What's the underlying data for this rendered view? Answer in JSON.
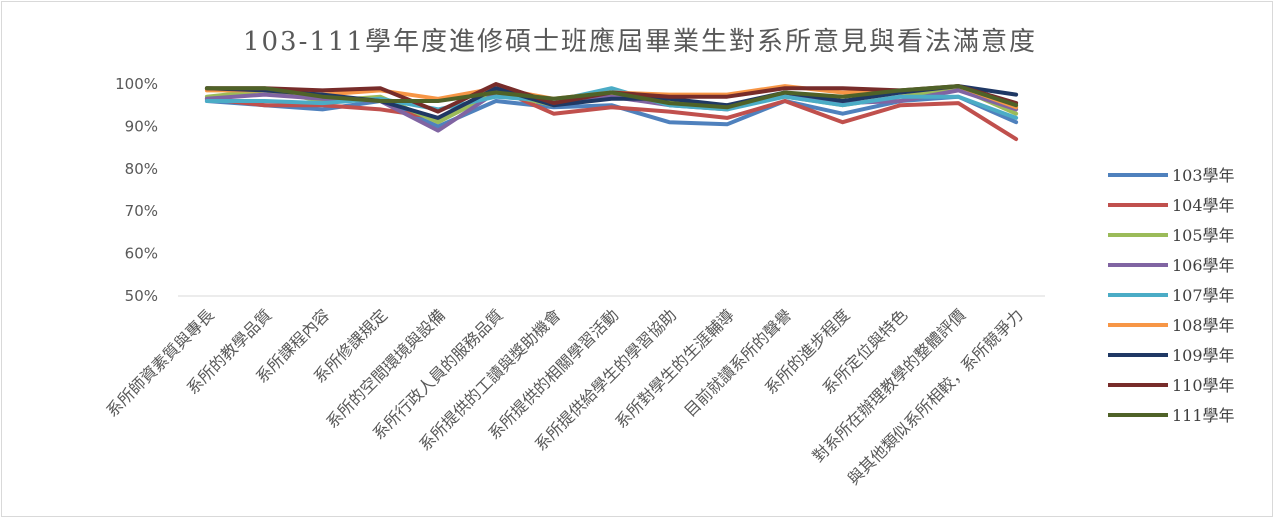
{
  "chart_data": {
    "type": "line",
    "title": "103-111學年度進修碩士班應屆畢業生對系所意見與看法滿意度",
    "xlabel": "",
    "ylabel": "",
    "ylim": [
      50,
      100
    ],
    "yticks": [
      "50%",
      "60%",
      "70%",
      "80%",
      "90%",
      "100%"
    ],
    "grid": false,
    "legend": "right",
    "categories": [
      "系所師資素質與專長",
      "系所的教學品質",
      "系所課程內容",
      "系所修課規定",
      "系所的空間環境與設備",
      "系所行政人員的服務品質",
      "系所提供的工讀與獎助機會",
      "系所提供的相關學習活動",
      "系所提供給學生的學習協助",
      "系所對學生的生涯輔導",
      "目前就讀系所的聲譽",
      "系所的進步程度",
      "系所定位與特色",
      "對系所在辦理教學的整體評價",
      "與其他類似系所相較，系所競爭力"
    ],
    "series": [
      {
        "name": "103學年",
        "color": "#4f81bd",
        "values": [
          96.0,
          95.0,
          94.0,
          96.0,
          90.0,
          96.0,
          94.5,
          95.0,
          91.0,
          90.5,
          96.0,
          93.0,
          96.0,
          97.0,
          91.0
        ]
      },
      {
        "name": "104學年",
        "color": "#c0504d",
        "values": [
          96.5,
          95.0,
          95.0,
          94.0,
          92.0,
          99.0,
          93.0,
          94.5,
          93.5,
          92.0,
          96.0,
          91.0,
          95.0,
          95.5,
          87.0
        ]
      },
      {
        "name": "105學年",
        "color": "#9bbb59",
        "values": [
          97.0,
          98.5,
          96.0,
          97.0,
          91.0,
          98.0,
          95.0,
          97.0,
          96.0,
          95.0,
          97.0,
          95.0,
          97.0,
          99.0,
          93.0
        ]
      },
      {
        "name": "106學年",
        "color": "#8064a2",
        "values": [
          96.5,
          97.5,
          96.5,
          96.0,
          89.0,
          98.0,
          96.0,
          97.0,
          95.0,
          94.0,
          98.0,
          95.5,
          96.0,
          98.5,
          94.0
        ]
      },
      {
        "name": "107學年",
        "color": "#4bacc6",
        "values": [
          96.0,
          96.0,
          95.5,
          96.5,
          94.0,
          97.0,
          96.0,
          99.0,
          95.0,
          94.0,
          97.0,
          95.0,
          97.0,
          97.0,
          92.0
        ]
      },
      {
        "name": "108學年",
        "color": "#f79646",
        "values": [
          98.5,
          98.5,
          97.5,
          98.5,
          96.5,
          99.0,
          96.5,
          98.0,
          97.5,
          97.5,
          99.5,
          98.0,
          98.0,
          99.5,
          94.5
        ]
      },
      {
        "name": "109學年",
        "color": "#1f3864",
        "values": [
          99.0,
          98.5,
          97.5,
          96.0,
          92.0,
          99.0,
          95.0,
          96.5,
          96.5,
          95.0,
          98.0,
          96.0,
          98.0,
          99.5,
          97.5
        ]
      },
      {
        "name": "110學年",
        "color": "#772c2a",
        "values": [
          99.0,
          99.0,
          98.5,
          99.0,
          93.5,
          100.0,
          95.5,
          98.0,
          97.0,
          97.0,
          99.0,
          99.0,
          98.5,
          99.5,
          95.5
        ]
      },
      {
        "name": "111學年",
        "color": "#4f6228",
        "values": [
          99.0,
          99.0,
          97.0,
          96.0,
          96.0,
          98.0,
          96.5,
          98.0,
          95.5,
          94.5,
          98.0,
          97.0,
          98.5,
          99.5,
          95.0
        ]
      }
    ]
  }
}
